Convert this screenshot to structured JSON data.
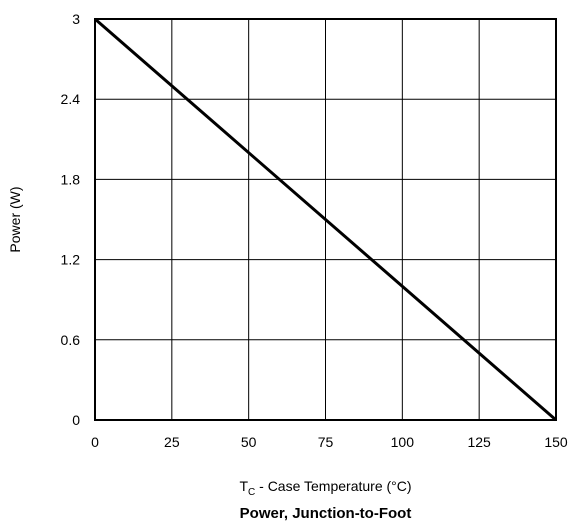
{
  "chart_data": {
    "type": "line",
    "title": "Power, Junction-to-Foot",
    "xlabel": {
      "main": "T",
      "subscript": "C",
      "rest": " - Case Temperature (°C)"
    },
    "ylabel": "Power (W)",
    "xlim": [
      0,
      150
    ],
    "ylim": [
      0,
      3
    ],
    "x_ticks": [
      0,
      25,
      50,
      75,
      100,
      125,
      150
    ],
    "y_ticks": [
      0,
      0.6,
      1.2,
      1.8,
      2.4,
      3
    ],
    "x_tick_labels": [
      "0",
      "25",
      "50",
      "75",
      "100",
      "125",
      "150"
    ],
    "y_tick_labels": [
      "0",
      "0.6",
      "1.2",
      "1.8",
      "2.4",
      "3"
    ],
    "grid": true,
    "series": [
      {
        "x": [
          0,
          150
        ],
        "y": [
          3,
          0
        ]
      }
    ],
    "colors": {
      "line": "#000000",
      "grid": "#000000",
      "background": "#ffffff"
    }
  }
}
